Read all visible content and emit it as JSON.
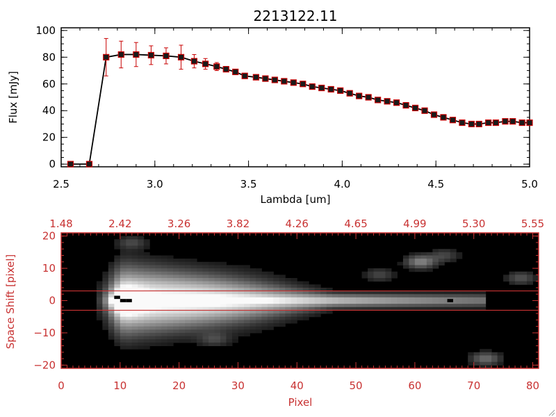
{
  "chart_data": [
    {
      "type": "line",
      "title": "2213122.11",
      "xlabel": "Lambda [um]",
      "ylabel": "Flux [mJy]",
      "xlim": [
        2.5,
        5.0
      ],
      "ylim": [
        -2,
        102
      ],
      "x_ticks": [
        2.5,
        3.0,
        3.5,
        4.0,
        4.5,
        5.0
      ],
      "x_tick_labels": [
        "2.5",
        "3.0",
        "3.5",
        "4.0",
        "4.5",
        "5.0"
      ],
      "y_ticks": [
        0,
        20,
        40,
        60,
        80,
        100
      ],
      "y_tick_labels": [
        "0",
        "20",
        "40",
        "60",
        "80",
        "100"
      ],
      "marker": "square",
      "line_color": "#000000",
      "marker_color": "#c80000",
      "errorbar_color": "#c80000",
      "series": [
        {
          "x": [
            2.55,
            2.65,
            2.74,
            2.82,
            2.9,
            2.98,
            3.06,
            3.14,
            3.21,
            3.27,
            3.33,
            3.38,
            3.43,
            3.48,
            3.54,
            3.59,
            3.64,
            3.69,
            3.74,
            3.79,
            3.84,
            3.89,
            3.94,
            3.99,
            4.04,
            4.09,
            4.14,
            4.19,
            4.24,
            4.29,
            4.34,
            4.39,
            4.44,
            4.49,
            4.54,
            4.59,
            4.64,
            4.69,
            4.73,
            4.78,
            4.82,
            4.87,
            4.91,
            4.96,
            5.0
          ],
          "y": [
            0,
            0,
            80,
            82,
            82,
            81.5,
            81,
            80,
            77,
            75,
            73,
            71,
            69,
            66,
            65,
            64,
            63,
            62,
            61,
            60,
            58,
            57,
            56,
            55,
            53,
            51,
            50,
            48,
            47,
            46,
            44,
            42,
            40,
            37,
            35,
            33,
            31,
            30,
            30,
            31,
            31,
            32,
            32,
            31,
            31
          ],
          "yerr": [
            0,
            0,
            14,
            10,
            9,
            7,
            6,
            9,
            5,
            4,
            3,
            2,
            1.5,
            1.5,
            1.5,
            1.5,
            1.5,
            1.5,
            1.5,
            1.5,
            1.5,
            1.5,
            1.5,
            1.5,
            1.5,
            1.5,
            1.5,
            1.5,
            1.5,
            1.5,
            1.5,
            1.5,
            1.5,
            1.5,
            1.5,
            1.5,
            1.5,
            1.5,
            1.5,
            1.5,
            1.5,
            1.5,
            1.5,
            1.5,
            1.5
          ]
        }
      ]
    },
    {
      "type": "heatmap",
      "colormap": "grayscale",
      "xlabel": "Pixel",
      "ylabel": "Space Shift [pixel]",
      "xlim": [
        0,
        81
      ],
      "ylim": [
        -21,
        21
      ],
      "x_ticks": [
        0,
        10,
        20,
        30,
        40,
        50,
        60,
        70,
        80
      ],
      "x_tick_labels": [
        "0",
        "10",
        "20",
        "30",
        "40",
        "50",
        "60",
        "70",
        "80"
      ],
      "y_ticks": [
        -20,
        -10,
        0,
        10,
        20
      ],
      "y_tick_labels": [
        "−20",
        "−10",
        "0",
        "10",
        "20"
      ],
      "top_ticks": [
        0,
        10,
        20,
        30,
        40,
        50,
        60,
        70,
        80
      ],
      "top_tick_labels": [
        "1.48",
        "2.42",
        "3.26",
        "3.82",
        "4.26",
        "4.65",
        "4.99",
        "5.30",
        "5.55"
      ],
      "extraction_band": [
        -3,
        3
      ],
      "axis_color": "#c83232",
      "band_color": "#c83232",
      "trace": {
        "peak_x": 11,
        "core_x_range": [
          8,
          72
        ],
        "center_y": 0
      },
      "blobs": [
        {
          "x": 61,
          "y": 12,
          "intensity": 0.45
        },
        {
          "x": 54,
          "y": 8,
          "intensity": 0.2
        },
        {
          "x": 78,
          "y": 7,
          "intensity": 0.25
        },
        {
          "x": 72,
          "y": -18,
          "intensity": 0.35
        },
        {
          "x": 12,
          "y": 18,
          "intensity": 0.2
        },
        {
          "x": 65,
          "y": 14,
          "intensity": 0.2
        },
        {
          "x": 26,
          "y": -12,
          "intensity": 0.18
        }
      ],
      "dead_pixels": [
        {
          "x": 10.5,
          "y": 0
        },
        {
          "x": 11.5,
          "y": 0
        },
        {
          "x": 9.5,
          "y": 1
        },
        {
          "x": 66,
          "y": 0
        }
      ]
    }
  ]
}
